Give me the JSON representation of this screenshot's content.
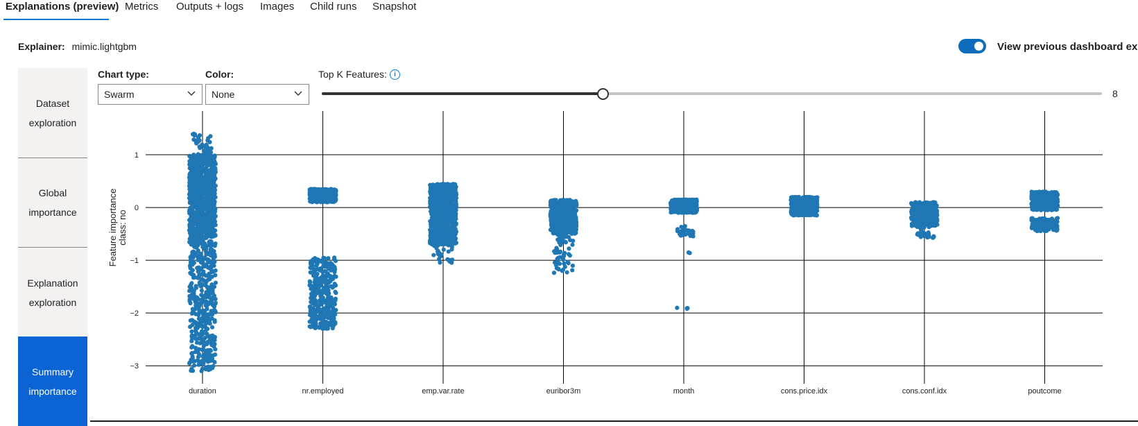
{
  "tabs": [
    {
      "label": "Explanations (preview)",
      "active": true
    },
    {
      "label": "Metrics"
    },
    {
      "label": "Outputs + logs"
    },
    {
      "label": "Images"
    },
    {
      "label": "Child runs"
    },
    {
      "label": "Snapshot"
    }
  ],
  "explainer": {
    "label": "Explainer:",
    "value": "mimic.lightgbm"
  },
  "toggle": {
    "label": "View previous dashboard experi",
    "on": true
  },
  "sidebar": {
    "items": [
      {
        "label": "Dataset exploration"
      },
      {
        "label": "Global importance"
      },
      {
        "label": "Explanation exploration"
      },
      {
        "label": "Summary importance",
        "active": true
      }
    ]
  },
  "controls": {
    "chart_type": {
      "label": "Chart type:",
      "value": "Swarm"
    },
    "color": {
      "label": "Color:",
      "value": "None"
    },
    "topk": {
      "label": "Top K Features:",
      "value": "8",
      "fraction": 0.36
    }
  },
  "icons": {
    "info": "info-icon",
    "chevron": "chevron-down-icon"
  },
  "colors": {
    "accent": "#0078d4",
    "nav_active": "#0b63d4",
    "point": "#1f77b4"
  },
  "chart_data": {
    "type": "scatter",
    "subtype": "swarm",
    "ylabel": "Feature importance",
    "ylabel2": "class:  no",
    "yticks": [
      1,
      0,
      -1,
      -2,
      -3
    ],
    "ytick_labels": [
      "1",
      "0",
      "−1",
      "−2",
      "−3"
    ],
    "ylim": [
      -3.3,
      1.75
    ],
    "grid": true,
    "categories": [
      "duration",
      "nr.employed",
      "emp.var.rate",
      "euribor3m",
      "month",
      "cons.price.idx",
      "cons.conf.idx",
      "poutcome"
    ],
    "clusters": [
      {
        "feature": "duration",
        "ranges": [
          {
            "lo": -0.6,
            "hi": 1.0,
            "n": 900
          },
          {
            "lo": -3.1,
            "hi": -0.6,
            "n": 420
          },
          {
            "lo": 1.0,
            "hi": 1.4,
            "n": 35
          }
        ]
      },
      {
        "feature": "nr.employed",
        "ranges": [
          {
            "lo": 0.1,
            "hi": 0.35,
            "n": 450
          },
          {
            "lo": -2.3,
            "hi": -0.95,
            "n": 380
          }
        ]
      },
      {
        "feature": "emp.var.rate",
        "ranges": [
          {
            "lo": 0.0,
            "hi": 0.45,
            "n": 420
          },
          {
            "lo": -0.7,
            "hi": 0.0,
            "n": 400
          },
          {
            "lo": -1.05,
            "hi": -0.7,
            "n": 25
          }
        ]
      },
      {
        "feature": "euribor3m",
        "ranges": [
          {
            "lo": -0.5,
            "hi": 0.15,
            "n": 500
          },
          {
            "lo": -1.25,
            "hi": -0.5,
            "n": 60
          }
        ]
      },
      {
        "feature": "month",
        "ranges": [
          {
            "lo": -0.1,
            "hi": 0.15,
            "n": 420
          },
          {
            "lo": -0.55,
            "hi": -0.35,
            "n": 25
          },
          {
            "lo": -0.87,
            "hi": -0.85,
            "n": 2
          },
          {
            "lo": -1.92,
            "hi": -1.88,
            "n": 4
          }
        ]
      },
      {
        "feature": "cons.price.idx",
        "ranges": [
          {
            "lo": -0.15,
            "hi": 0.2,
            "n": 500
          }
        ]
      },
      {
        "feature": "cons.conf.idx",
        "ranges": [
          {
            "lo": -0.35,
            "hi": 0.1,
            "n": 400
          },
          {
            "lo": -0.58,
            "hi": -0.35,
            "n": 30
          }
        ]
      },
      {
        "feature": "poutcome",
        "ranges": [
          {
            "lo": -0.05,
            "hi": 0.3,
            "n": 350
          },
          {
            "lo": -0.45,
            "hi": -0.2,
            "n": 120
          }
        ]
      }
    ]
  }
}
